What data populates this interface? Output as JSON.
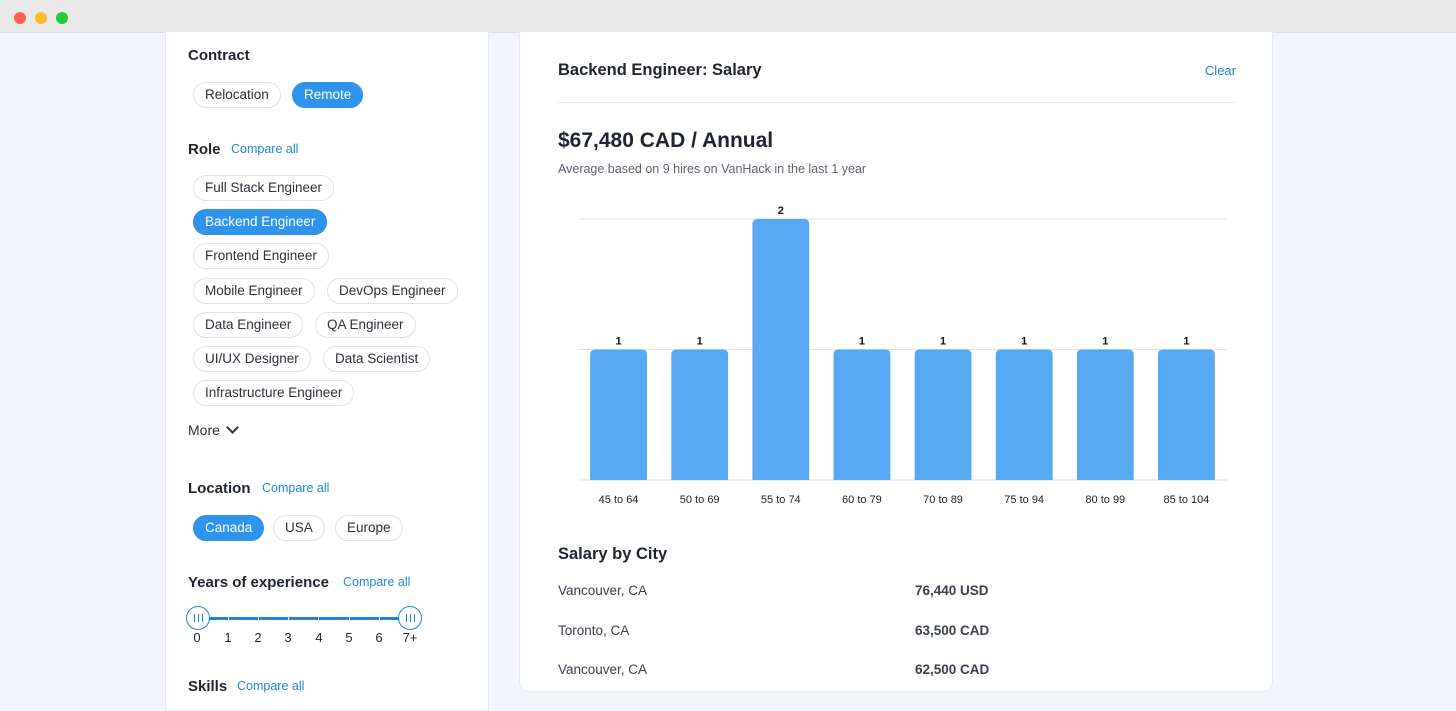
{
  "filters": {
    "contract": {
      "title": "Contract",
      "options": [
        {
          "label": "Relocation",
          "active": false
        },
        {
          "label": "Remote",
          "active": true
        }
      ]
    },
    "role": {
      "title": "Role",
      "compare_label": "Compare all",
      "options": [
        {
          "label": "Full Stack Engineer",
          "active": false
        },
        {
          "label": "Backend Engineer",
          "active": true
        },
        {
          "label": "Frontend Engineer",
          "active": false
        },
        {
          "label": "Mobile Engineer",
          "active": false
        },
        {
          "label": "DevOps Engineer",
          "active": false
        },
        {
          "label": "Data Engineer",
          "active": false
        },
        {
          "label": "QA Engineer",
          "active": false
        },
        {
          "label": "UI/UX Designer",
          "active": false
        },
        {
          "label": "Data Scientist",
          "active": false
        },
        {
          "label": "Infrastructure Engineer",
          "active": false
        }
      ],
      "more_label": "More"
    },
    "location": {
      "title": "Location",
      "compare_label": "Compare all",
      "options": [
        {
          "label": "Canada",
          "active": true
        },
        {
          "label": "USA",
          "active": false
        },
        {
          "label": "Europe",
          "active": false
        }
      ]
    },
    "experience": {
      "title": "Years of experience",
      "compare_label": "Compare all",
      "labels": [
        "0",
        "1",
        "2",
        "3",
        "4",
        "5",
        "6",
        "7+"
      ],
      "range": [
        0,
        7
      ]
    },
    "skills": {
      "title": "Skills",
      "compare_label": "Compare all"
    }
  },
  "main": {
    "title": "Backend Engineer: Salary",
    "clear_label": "Clear",
    "salary": "$67,480 CAD / Annual",
    "salary_note": "Average based on 9 hires on VanHack in the last 1 year",
    "city_section_title": "Salary by City",
    "cities": [
      {
        "city": "Vancouver, CA",
        "value": "76,440 USD"
      },
      {
        "city": "Toronto, CA",
        "value": "63,500 CAD"
      },
      {
        "city": "Vancouver, CA",
        "value": "62,500 CAD"
      }
    ]
  },
  "chart_data": {
    "type": "bar",
    "categories": [
      "45 to 64",
      "50 to 69",
      "55 to 74",
      "60 to 79",
      "70 to 89",
      "75 to 94",
      "80 to 99",
      "85 to 104"
    ],
    "values": [
      1,
      1,
      2,
      1,
      1,
      1,
      1,
      1
    ],
    "ylim": [
      0,
      2
    ],
    "grid": true,
    "bar_color": "#4da3f2"
  },
  "colors": {
    "accent": "#2f94ec",
    "link": "#1f86d7"
  }
}
